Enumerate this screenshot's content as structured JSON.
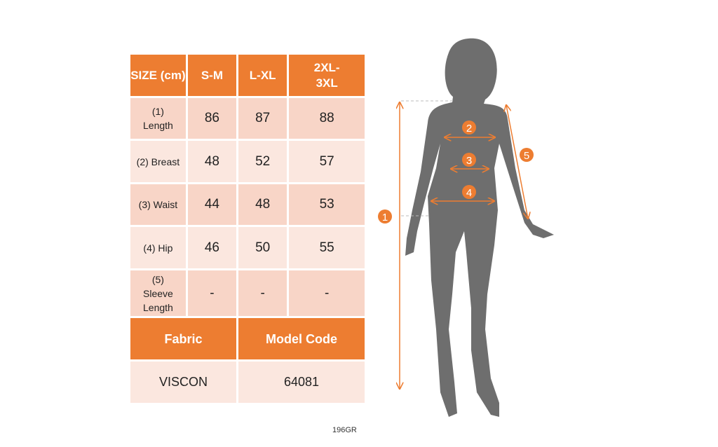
{
  "table": {
    "header": [
      "SIZE (cm)",
      "S-M",
      "L-XL",
      "2XL- 3XL"
    ],
    "rows": [
      {
        "label": "(1) Length",
        "values": [
          "86",
          "87",
          "88"
        ]
      },
      {
        "label": "(2) Breast",
        "values": [
          "48",
          "52",
          "57"
        ]
      },
      {
        "label": "(3) Waist",
        "values": [
          "44",
          "48",
          "53"
        ]
      },
      {
        "label": "(4) Hip",
        "values": [
          "46",
          "50",
          "55"
        ]
      },
      {
        "label": "(5) Sleeve Length",
        "values": [
          "-",
          "-",
          "-"
        ]
      }
    ],
    "fabric_label": "Fabric",
    "model_code_label": "Model Code",
    "fabric": "VISCON",
    "model_code": "64081"
  },
  "figure": {
    "markers": [
      "1",
      "2",
      "3",
      "4",
      "5"
    ]
  },
  "code": "196GR",
  "colors": {
    "accent": "#ED7D31",
    "cell_dark": "#F8D5C7",
    "cell_light": "#FBE7DF",
    "silhouette": "#6E6E6E"
  }
}
